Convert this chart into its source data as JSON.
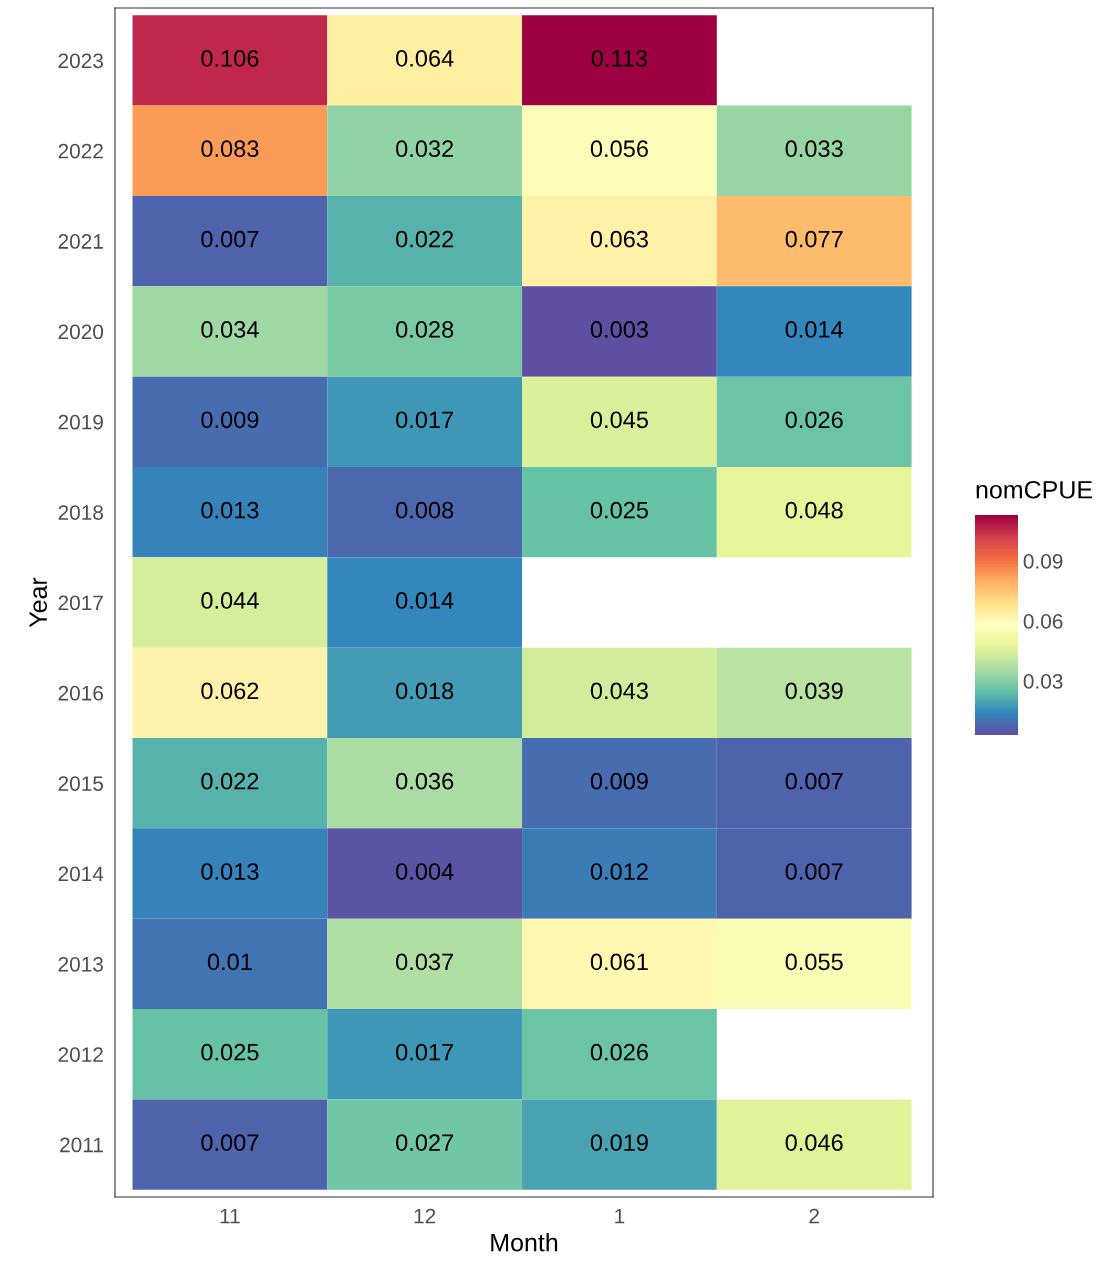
{
  "chart_data": {
    "type": "heatmap",
    "xlabel": "Month",
    "ylabel": "Year",
    "clabel": "nomCPUE",
    "categories": [
      "11",
      "12",
      "1",
      "2"
    ],
    "y_categories": [
      "2023",
      "2022",
      "2021",
      "2020",
      "2019",
      "2018",
      "2017",
      "2016",
      "2015",
      "2014",
      "2013",
      "2012",
      "2011"
    ],
    "cells": [
      [
        0.106,
        0.064,
        0.113,
        null
      ],
      [
        0.083,
        0.032,
        0.056,
        0.033
      ],
      [
        0.007,
        0.022,
        0.063,
        0.077
      ],
      [
        0.034,
        0.028,
        0.003,
        0.014
      ],
      [
        0.009,
        0.017,
        0.045,
        0.026
      ],
      [
        0.013,
        0.008,
        0.025,
        0.048
      ],
      [
        0.044,
        0.014,
        null,
        null
      ],
      [
        0.062,
        0.018,
        0.043,
        0.039
      ],
      [
        0.022,
        0.036,
        0.009,
        0.007
      ],
      [
        0.013,
        0.004,
        0.012,
        0.007
      ],
      [
        0.01,
        0.037,
        0.061,
        0.055
      ],
      [
        0.025,
        0.017,
        0.026,
        null
      ],
      [
        0.007,
        0.027,
        0.019,
        0.046
      ]
    ],
    "clim": [
      0.003,
      0.113
    ],
    "cticks": [
      0.03,
      0.06,
      0.09
    ],
    "data_labels": true,
    "grid": false
  }
}
